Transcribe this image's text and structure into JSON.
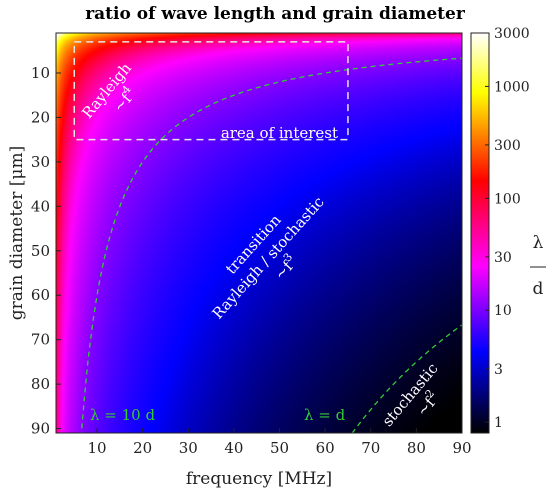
{
  "chart_data": {
    "type": "heatmap",
    "title": "ratio of wave length and grain diameter",
    "xlabel": "frequency [MHz]",
    "ylabel": "grain diameter [μm]",
    "x_range": [
      1,
      90
    ],
    "y_range": [
      1,
      91
    ],
    "y_reversed": true,
    "x_ticks": [
      10,
      20,
      30,
      40,
      50,
      60,
      70,
      80,
      90
    ],
    "y_ticks": [
      10,
      20,
      30,
      40,
      50,
      60,
      70,
      80,
      90
    ],
    "value_formula": "lambda/d with lambda = 6000 / f",
    "colorbar": {
      "label_top": "λ",
      "label_bottom": "d",
      "scale": "log",
      "range": [
        0.8,
        3000
      ],
      "ticks": [
        1,
        3,
        10,
        30,
        100,
        300,
        1000,
        3000
      ],
      "tick_labels": [
        "1",
        "3",
        "10",
        "30",
        "100",
        "300",
        "1000",
        "3000"
      ],
      "colormap": [
        "#000000",
        "#0000ff",
        "#ff00ff",
        "#ff0000",
        "#ffff00",
        "#ffffff"
      ]
    },
    "contours": [
      {
        "ratio": 10,
        "label": "λ = 10 d",
        "color": "#33cc33"
      },
      {
        "ratio": 1,
        "label": "λ = d",
        "color": "#33cc33"
      }
    ],
    "area_of_interest": {
      "label": "area of interest",
      "x_range": [
        5,
        65
      ],
      "y_range": [
        3,
        25
      ]
    },
    "annotations": {
      "rayleigh": [
        "Rayleigh",
        "~f"
      ],
      "rayleigh_exp": "4",
      "transition": [
        "transition",
        "Rayleigh / stochastic",
        "~f"
      ],
      "transition_exp": "3",
      "stochastic": [
        "stochastic",
        "~f"
      ],
      "stochastic_exp": "2"
    }
  }
}
